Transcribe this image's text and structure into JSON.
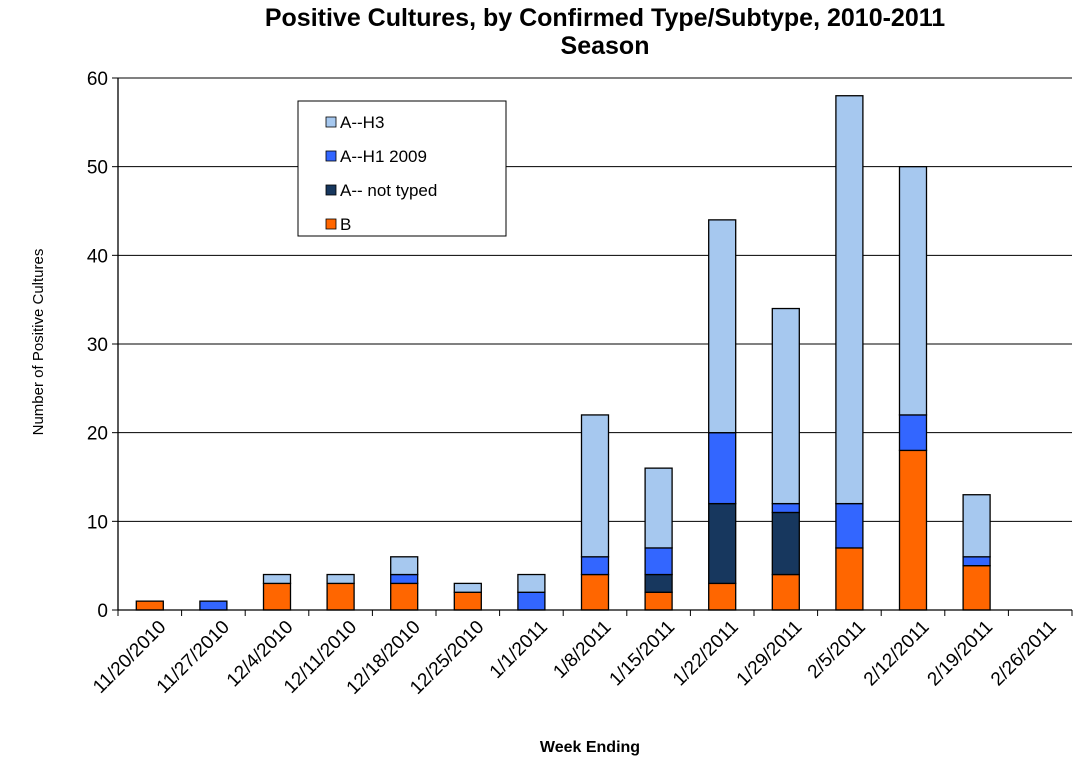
{
  "chart_data": {
    "type": "bar",
    "stacked": true,
    "title_line1": "Positive Cultures, by Confirmed Type/Subtype, 2010-2011",
    "title_line2": "Season",
    "xlabel": "Week Ending",
    "ylabel": "Number of Positive Cultures",
    "ylim": [
      0,
      60
    ],
    "yticks": [
      0,
      10,
      20,
      30,
      40,
      50,
      60
    ],
    "grid": "horizontal",
    "legend_position": "top-left",
    "categories": [
      "11/20/2010",
      "11/27/2010",
      "12/4/2010",
      "12/11/2010",
      "12/18/2010",
      "12/25/2010",
      "1/1/2011",
      "1/8/2011",
      "1/15/2011",
      "1/22/2011",
      "1/29/2011",
      "2/5/2011",
      "2/12/2011",
      "2/19/2011",
      "2/26/2011"
    ],
    "series": [
      {
        "name": "B",
        "color": "#ff6600",
        "values": [
          1,
          0,
          3,
          3,
          3,
          2,
          0,
          4,
          2,
          3,
          4,
          7,
          18,
          5,
          0
        ]
      },
      {
        "name": "A-- not typed",
        "color": "#17375e",
        "values": [
          0,
          0,
          0,
          0,
          0,
          0,
          0,
          0,
          2,
          9,
          7,
          0,
          0,
          0,
          0
        ]
      },
      {
        "name": "A--H1 2009",
        "color": "#3366ff",
        "values": [
          0,
          1,
          0,
          0,
          1,
          0,
          2,
          2,
          3,
          8,
          1,
          5,
          4,
          1,
          0
        ]
      },
      {
        "name": "A--H3",
        "color": "#a6c8ef",
        "values": [
          0,
          0,
          1,
          1,
          2,
          1,
          2,
          16,
          9,
          24,
          22,
          46,
          28,
          7,
          0
        ]
      }
    ],
    "legend_order": [
      3,
      2,
      1,
      0
    ]
  }
}
